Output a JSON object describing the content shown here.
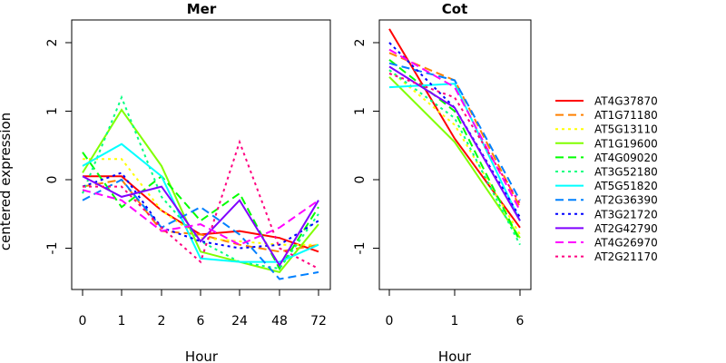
{
  "chart_data": [
    {
      "type": "line",
      "title": "Mer",
      "xlabel": "Hour",
      "ylabel": "centered expression",
      "categories": [
        "0",
        "1",
        "2",
        "6",
        "24",
        "48",
        "72"
      ],
      "ylim": [
        -1.6,
        2.4
      ],
      "yticks": [
        "-1",
        "0",
        "1",
        "2"
      ],
      "series": [
        {
          "name": "AT4G37870",
          "values": [
            0.05,
            0.05,
            -0.45,
            -0.8,
            -0.75,
            -0.85,
            -1.05
          ]
        },
        {
          "name": "AT1G71180",
          "values": [
            -0.1,
            0.0,
            -0.75,
            -0.8,
            -0.95,
            -1.05,
            -0.95
          ]
        },
        {
          "name": "AT5G13110",
          "values": [
            0.3,
            0.3,
            -0.45,
            -0.85,
            -0.9,
            -0.95,
            -0.95
          ]
        },
        {
          "name": "AT1G19600",
          "values": [
            0.1,
            1.02,
            0.2,
            -1.05,
            -1.2,
            -1.35,
            -0.65
          ]
        },
        {
          "name": "AT4G09020",
          "values": [
            0.4,
            -0.4,
            0.05,
            -0.6,
            -0.2,
            -1.3,
            -0.4
          ]
        },
        {
          "name": "AT3G52180",
          "values": [
            -0.2,
            1.2,
            -0.25,
            -0.9,
            -1.2,
            -1.3,
            -0.5
          ]
        },
        {
          "name": "AT5G51820",
          "values": [
            0.2,
            0.52,
            0.05,
            -1.15,
            -1.2,
            -1.2,
            -0.95
          ]
        },
        {
          "name": "AT2G36390",
          "values": [
            -0.3,
            0.0,
            -0.7,
            -0.4,
            -0.8,
            -1.45,
            -1.35
          ]
        },
        {
          "name": "AT3G21720",
          "values": [
            -0.1,
            0.1,
            -0.7,
            -0.9,
            -1.0,
            -0.95,
            -0.6
          ]
        },
        {
          "name": "AT2G42790",
          "values": [
            0.05,
            -0.25,
            -0.1,
            -0.9,
            -0.3,
            -1.25,
            -0.3
          ]
        },
        {
          "name": "AT4G26970",
          "values": [
            -0.15,
            -0.3,
            -0.75,
            -0.65,
            -0.95,
            -0.7,
            -0.3
          ]
        },
        {
          "name": "AT2G21170",
          "values": [
            -0.1,
            -0.1,
            -0.7,
            -1.2,
            0.55,
            -1.0,
            -1.3
          ]
        }
      ]
    },
    {
      "type": "line",
      "title": "Cot",
      "xlabel": "Hour",
      "ylabel": "",
      "categories": [
        "0",
        "1",
        "6"
      ],
      "ylim": [
        -1.6,
        2.4
      ],
      "yticks": [
        "-1",
        "0",
        "1",
        "2"
      ],
      "series": [
        {
          "name": "AT4G37870",
          "values": [
            2.2,
            0.6,
            -0.7
          ]
        },
        {
          "name": "AT1G71180",
          "values": [
            1.85,
            1.45,
            -0.4
          ]
        },
        {
          "name": "AT5G13110",
          "values": [
            1.6,
            0.8,
            -0.8
          ]
        },
        {
          "name": "AT1G19600",
          "values": [
            1.5,
            0.55,
            -0.85
          ]
        },
        {
          "name": "AT4G09020",
          "values": [
            1.75,
            1.0,
            -0.9
          ]
        },
        {
          "name": "AT3G52180",
          "values": [
            1.6,
            0.9,
            -0.95
          ]
        },
        {
          "name": "AT5G51820",
          "values": [
            1.35,
            1.4,
            -0.6
          ]
        },
        {
          "name": "AT2G36390",
          "values": [
            1.7,
            1.45,
            -0.3
          ]
        },
        {
          "name": "AT3G21720",
          "values": [
            2.0,
            1.05,
            -0.55
          ]
        },
        {
          "name": "AT2G42790",
          "values": [
            1.65,
            1.05,
            -0.6
          ]
        },
        {
          "name": "AT4G26970",
          "values": [
            1.9,
            1.35,
            -0.45
          ]
        },
        {
          "name": "AT2G21170",
          "values": [
            1.55,
            1.2,
            -0.35
          ]
        }
      ]
    }
  ],
  "legend": {
    "placement": "right",
    "items": [
      {
        "name": "AT4G37870",
        "color": "#FF0000",
        "dash": "solid"
      },
      {
        "name": "AT1G71180",
        "color": "#FF8000",
        "dash": "dashed"
      },
      {
        "name": "AT5G13110",
        "color": "#FFFF00",
        "dash": "dotted"
      },
      {
        "name": "AT1G19600",
        "color": "#80FF00",
        "dash": "solid"
      },
      {
        "name": "AT4G09020",
        "color": "#00FF00",
        "dash": "dashed"
      },
      {
        "name": "AT3G52180",
        "color": "#00FF80",
        "dash": "dotted"
      },
      {
        "name": "AT5G51820",
        "color": "#00FFFF",
        "dash": "solid"
      },
      {
        "name": "AT2G36390",
        "color": "#0080FF",
        "dash": "dashed"
      },
      {
        "name": "AT3G21720",
        "color": "#0000FF",
        "dash": "dotted"
      },
      {
        "name": "AT2G42790",
        "color": "#8000FF",
        "dash": "solid"
      },
      {
        "name": "AT4G26970",
        "color": "#FF00FF",
        "dash": "dashed"
      },
      {
        "name": "AT2G21170",
        "color": "#FF0080",
        "dash": "dotted"
      }
    ]
  }
}
